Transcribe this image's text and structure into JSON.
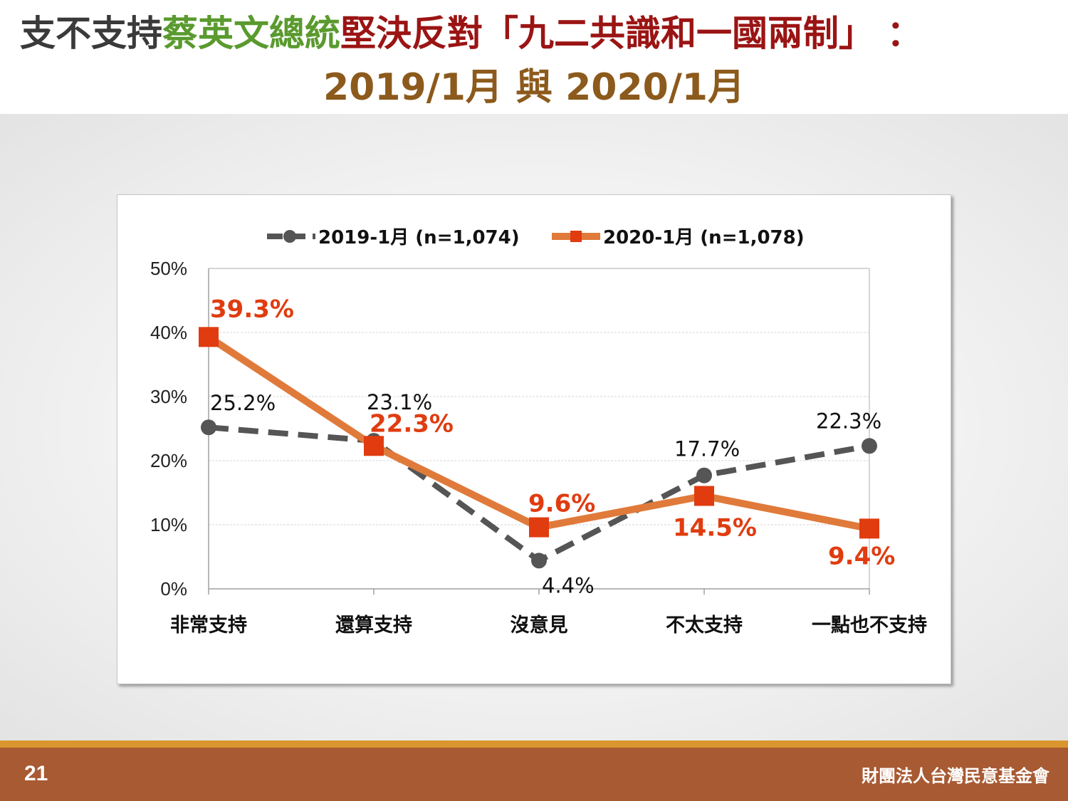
{
  "title": {
    "part1": "支不支持",
    "part2": "蔡英文總統",
    "part3": "堅決反對「九二共識和一國兩制」 ：",
    "line2": "2019/1月 與 2020/1月"
  },
  "footer": {
    "page_number": "21",
    "organization": "財團法人台灣民意基金會"
  },
  "colors": {
    "series_2019": "#555555",
    "series_2020": "#e07a3a",
    "marker_2020": "#e03c10",
    "label_2020": "#e03c10"
  },
  "chart_data": {
    "type": "line",
    "categories": [
      "非常支持",
      "還算支持",
      "沒意見",
      "不太支持",
      "一點也不支持"
    ],
    "ylim": [
      0,
      50
    ],
    "yticks": [
      0,
      10,
      20,
      30,
      40,
      50
    ],
    "ytick_labels": [
      "0%",
      "10%",
      "20%",
      "30%",
      "40%",
      "50%"
    ],
    "legend_position": "top",
    "grid": true,
    "series": [
      {
        "name": "2019-1月  (n=1,074)",
        "values": [
          25.2,
          23.1,
          4.4,
          17.7,
          22.3
        ],
        "labels": [
          "25.2%",
          "23.1%",
          "4.4%",
          "17.7%",
          "22.3%"
        ],
        "style": "dashed",
        "marker": "circle"
      },
      {
        "name": "2020-1月  (n=1,078)",
        "values": [
          39.3,
          22.3,
          9.6,
          14.5,
          9.4
        ],
        "labels": [
          "39.3%",
          "22.3%",
          "9.6%",
          "14.5%",
          "9.4%"
        ],
        "style": "solid",
        "marker": "square"
      }
    ]
  }
}
